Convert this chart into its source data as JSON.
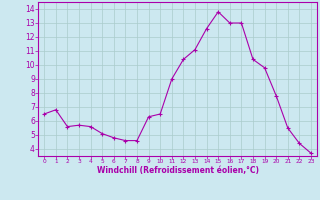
{
  "x": [
    0,
    1,
    2,
    3,
    4,
    5,
    6,
    7,
    8,
    9,
    10,
    11,
    12,
    13,
    14,
    15,
    16,
    17,
    18,
    19,
    20,
    21,
    22,
    23
  ],
  "y": [
    6.5,
    6.8,
    5.6,
    5.7,
    5.6,
    5.1,
    4.8,
    4.6,
    4.6,
    6.3,
    6.5,
    9.0,
    10.4,
    11.1,
    12.6,
    13.8,
    13.0,
    13.0,
    10.4,
    9.8,
    7.8,
    5.5,
    4.4,
    3.7
  ],
  "line_color": "#aa00aa",
  "marker_color": "#aa00aa",
  "bg_color": "#cce8f0",
  "grid_color": "#aacccc",
  "xlabel": "Windchill (Refroidissement éolien,°C)",
  "xlim": [
    -0.5,
    23.5
  ],
  "ylim": [
    3.5,
    14.5
  ],
  "yticks": [
    4,
    5,
    6,
    7,
    8,
    9,
    10,
    11,
    12,
    13,
    14
  ],
  "xticks": [
    0,
    1,
    2,
    3,
    4,
    5,
    6,
    7,
    8,
    9,
    10,
    11,
    12,
    13,
    14,
    15,
    16,
    17,
    18,
    19,
    20,
    21,
    22,
    23
  ],
  "tick_color": "#aa00aa",
  "label_color": "#aa00aa",
  "spine_color": "#aa00aa"
}
